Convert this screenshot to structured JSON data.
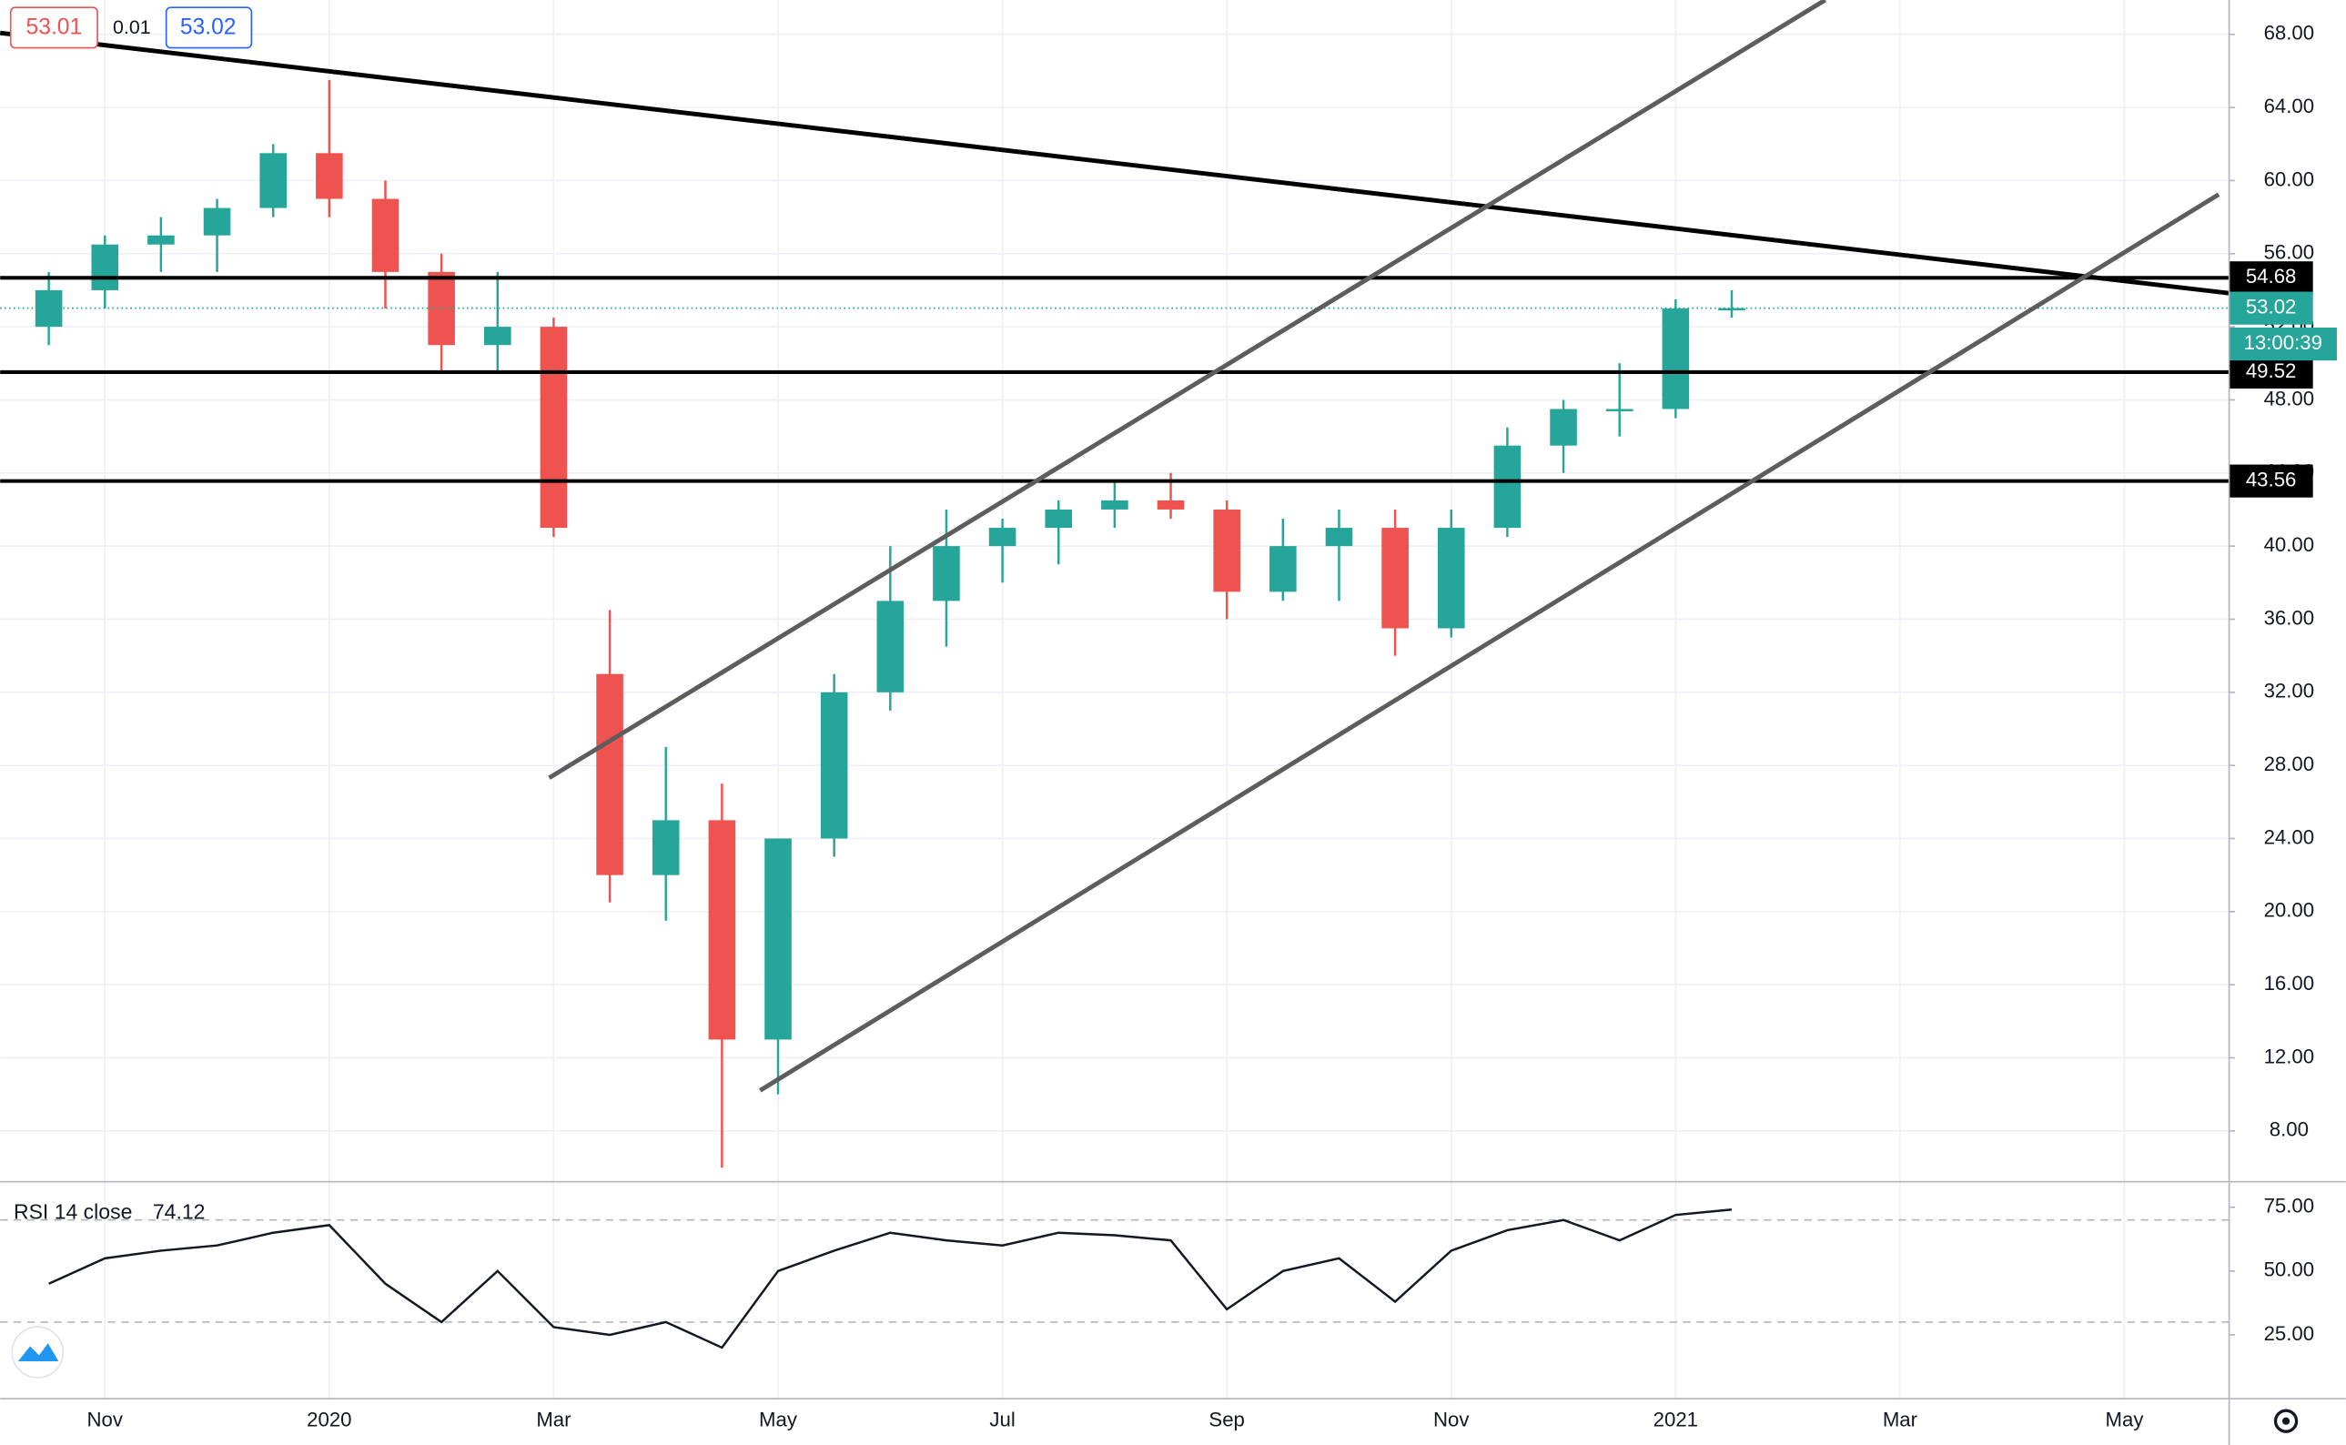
{
  "chart_data": [
    {
      "type": "candlestick",
      "categories": [
        null,
        "Nov",
        null,
        null,
        null,
        "2020",
        null,
        null,
        null,
        "Mar",
        null,
        null,
        null,
        "May",
        null,
        null,
        null,
        "Jul",
        null,
        null,
        null,
        "Sep",
        null,
        null,
        null,
        "Nov",
        null,
        null,
        null,
        "2021",
        null,
        null,
        null,
        "Mar",
        null,
        null,
        null,
        "May",
        null
      ],
      "open": [
        52,
        54,
        56.5,
        57,
        58.5,
        61.5,
        59,
        55,
        51,
        52,
        33,
        22,
        25,
        13,
        24,
        32,
        37,
        40,
        41,
        42,
        42.5,
        42,
        37.5,
        40,
        41,
        35.5,
        41,
        45.5,
        47.5,
        47.5,
        53,
        null,
        null,
        null,
        null,
        null,
        null,
        null,
        null
      ],
      "high": [
        55,
        57,
        58,
        59,
        62,
        65.5,
        60,
        56,
        55,
        52.5,
        36.5,
        29,
        27,
        24,
        33,
        40,
        42,
        41.5,
        42.5,
        43.5,
        44,
        42.5,
        41.5,
        42,
        42,
        42,
        46.5,
        48,
        50,
        53.5,
        54,
        null,
        null,
        null,
        null,
        null,
        null,
        null,
        null
      ],
      "low": [
        51,
        53,
        55,
        55,
        58,
        58,
        53,
        49.5,
        49.5,
        40.5,
        20.5,
        19.5,
        6,
        10,
        23,
        31,
        34.5,
        38,
        39,
        41,
        41.5,
        36,
        37,
        37,
        34,
        35,
        40.5,
        44,
        46,
        47,
        52.5,
        null,
        null,
        null,
        null,
        null,
        null,
        null,
        null
      ],
      "close": [
        54,
        56.5,
        57,
        58.5,
        61.5,
        59,
        55,
        51,
        52,
        41,
        22,
        25,
        13,
        24,
        32,
        37,
        40,
        41,
        42,
        42.5,
        42,
        37.5,
        40,
        41,
        35.5,
        41,
        45.5,
        47.5,
        47.5,
        53,
        53.02,
        null,
        null,
        null,
        null,
        null,
        null,
        null,
        null
      ],
      "up_color": "#26a69a",
      "down_color": "#ef5350",
      "ylim": [
        5.22,
        69.88
      ],
      "yticks": [
        {
          "value": 8,
          "label": "8.00"
        },
        {
          "value": 12,
          "label": "12.00"
        },
        {
          "value": 16,
          "label": "16.00"
        },
        {
          "value": 20,
          "label": "20.00"
        },
        {
          "value": 24,
          "label": "24.00"
        },
        {
          "value": 28,
          "label": "28.00"
        },
        {
          "value": 32,
          "label": "32.00"
        },
        {
          "value": 36,
          "label": "36.00"
        },
        {
          "value": 40,
          "label": "40.00"
        },
        {
          "value": 44,
          "label": "44.00"
        },
        {
          "value": 48,
          "label": "48.00"
        },
        {
          "value": 52,
          "label": "52.00"
        },
        {
          "value": 56,
          "label": "56.00"
        },
        {
          "value": 60,
          "label": "60.00"
        },
        {
          "value": 64,
          "label": "64.00"
        },
        {
          "value": 68,
          "label": "68.00"
        }
      ],
      "grid": true,
      "levels": [
        54.68,
        49.52,
        43.56
      ],
      "last_price": 53.02,
      "countdown": "13:00:39",
      "quote": {
        "sell": 53.01,
        "spread": 0.01,
        "buy": 53.02
      }
    },
    {
      "type": "line",
      "title": "RSI 14 close",
      "color": "#131722",
      "values": [
        45,
        55,
        58,
        60,
        65,
        68,
        45,
        30,
        50,
        28,
        25,
        30,
        20,
        50,
        58,
        65,
        62,
        60,
        65,
        64,
        62,
        35,
        50,
        55,
        38,
        58,
        66,
        70,
        62,
        72,
        74.12,
        null,
        null,
        null,
        null,
        null,
        null,
        null,
        null
      ],
      "ylim": [
        0,
        85
      ],
      "yticks": [
        {
          "value": 25,
          "label": "25.00"
        },
        {
          "value": 50,
          "label": "50.00"
        },
        {
          "value": 75,
          "label": "75.00"
        }
      ],
      "levels": [
        30,
        70
      ]
    }
  ]
}
